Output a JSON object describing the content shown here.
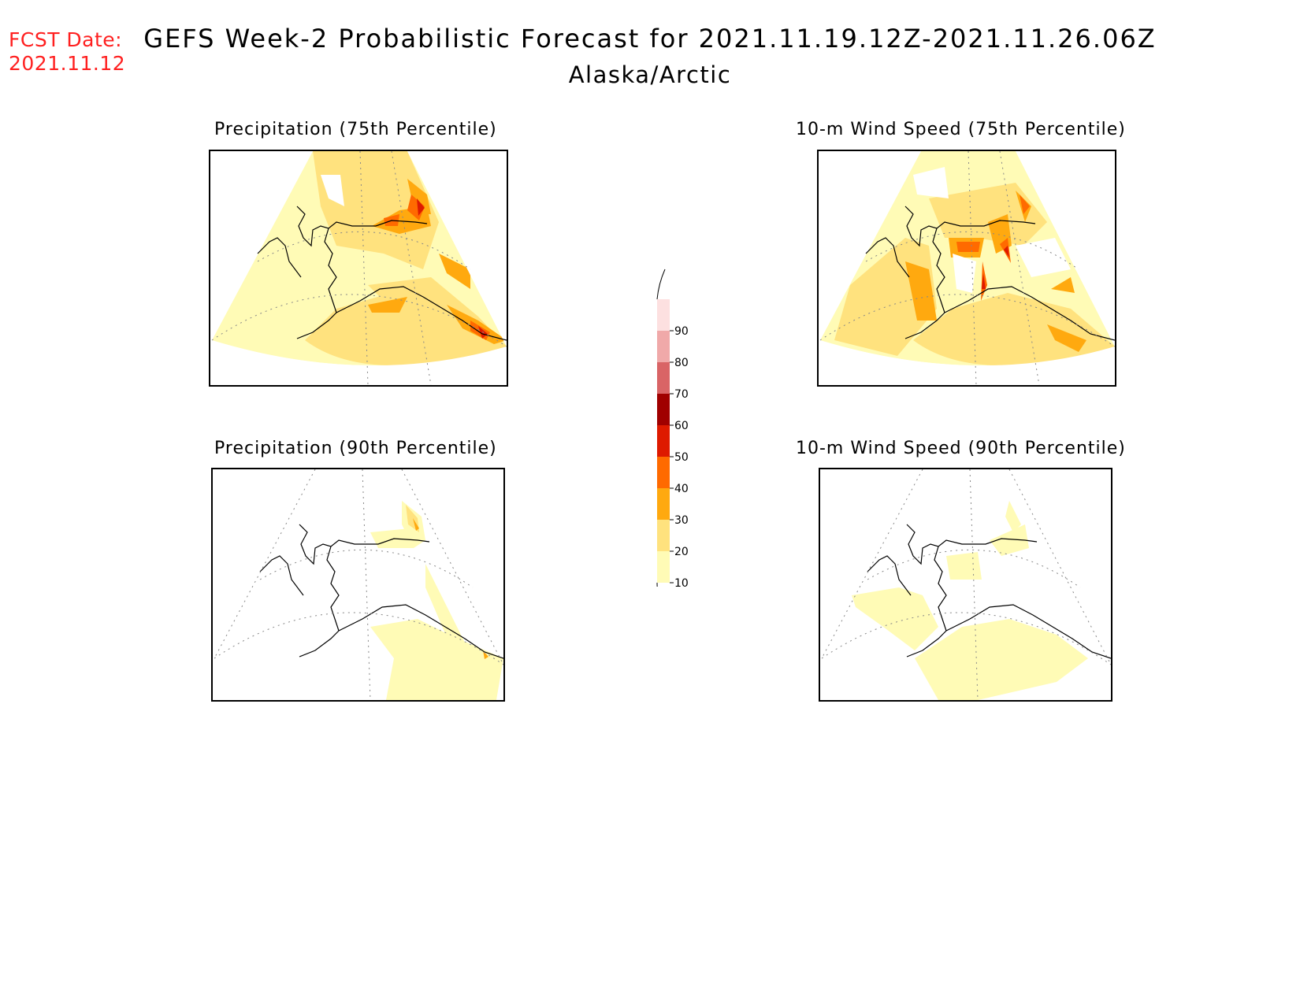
{
  "header": {
    "fcst_label": "FCST Date:",
    "fcst_date": "2021.11.12",
    "title": "GEFS Week-2 Probabilistic Forecast for 2021.11.19.12Z-2021.11.26.06Z",
    "subtitle": "Alaska/Arctic"
  },
  "panels": [
    {
      "id": "p75",
      "title": "Precipitation (75th Percentile)"
    },
    {
      "id": "w75",
      "title": "10-m Wind Speed (75th Percentile)"
    },
    {
      "id": "p90",
      "title": "Precipitation (90th Percentile)"
    },
    {
      "id": "w90",
      "title": "10-m Wind Speed (90th Percentile)"
    }
  ],
  "colorbar": {
    "levels": [
      "10",
      "20",
      "30",
      "40",
      "50",
      "60",
      "70",
      "80",
      "90"
    ],
    "colors": [
      "#fffbb6",
      "#ffe27e",
      "#ffa90f",
      "#ff6a00",
      "#de1a00",
      "#a00000",
      "#d96466",
      "#f0a9a9",
      "#fde0e0"
    ]
  }
}
